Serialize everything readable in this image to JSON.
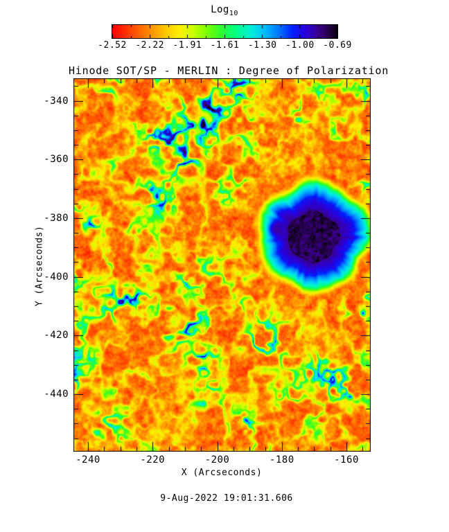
{
  "page": {
    "background": "#ffffff",
    "timestamp": "9-Aug-2022 19:01:31.606"
  },
  "chart_data": {
    "type": "heatmap",
    "title": "Hinode SOT/SP - MERLIN : Degree of Polarization",
    "xlabel": "X (Arcseconds)",
    "ylabel": "Y (Arcseconds)",
    "x_range": [
      -244.5,
      -152.5
    ],
    "y_range": [
      -459.6,
      -332.3
    ],
    "x_ticks": [
      -240,
      -220,
      -200,
      -180,
      -160
    ],
    "y_ticks": [
      -340,
      -360,
      -380,
      -400,
      -420,
      -440
    ],
    "minor_tick_step": 5,
    "grid": false,
    "colorbar": {
      "title": "Log",
      "title_sub": "10",
      "range": [
        -2.52,
        -0.69
      ],
      "tick_labels": [
        "-2.52",
        "-2.22",
        "-1.91",
        "-1.61",
        "-1.30",
        "-1.00",
        "-0.69"
      ],
      "stops": [
        [
          0.0,
          "#ff0000"
        ],
        [
          0.08,
          "#ff4400"
        ],
        [
          0.16,
          "#ff8800"
        ],
        [
          0.24,
          "#ffcc00"
        ],
        [
          0.3,
          "#fdf000"
        ],
        [
          0.36,
          "#c8ff00"
        ],
        [
          0.42,
          "#7dff00"
        ],
        [
          0.48,
          "#2eff2e"
        ],
        [
          0.55,
          "#00ff88"
        ],
        [
          0.62,
          "#00eedd"
        ],
        [
          0.68,
          "#00bbff"
        ],
        [
          0.74,
          "#0077ff"
        ],
        [
          0.8,
          "#0022ff"
        ],
        [
          0.86,
          "#2b00dd"
        ],
        [
          0.92,
          "#3a0088"
        ],
        [
          0.96,
          "#26004d"
        ],
        [
          1.0,
          "#0b0011"
        ]
      ]
    },
    "features": {
      "description": "Log10 degree-of-polarization map: quiet-Sun granular background near -2.4 (red/orange) with yellow speckle, magnetic network lanes at -1.9 to -1.2 (green/cyan/blue), and a sunspot of high polarization (core near -0.75, dark purple/black umbra, blue penumbra with radial filaments, green/yellow outer fringe).",
      "background_log10": -2.35,
      "network_log10": -1.5,
      "sunspot": {
        "x": -170.7,
        "y": -386.4,
        "umbra_radius_arcsec": 8.0,
        "penumbra_radius_arcsec": 15.5,
        "fringe_radius_arcsec": 19.7,
        "core_log10": -0.75
      },
      "pore": {
        "x": -181.5,
        "y": -383.6,
        "radius_arcsec": 2.5,
        "log10": -1.0
      },
      "network_hotspots": [
        {
          "x": 0.441,
          "y": 0.096,
          "r": 0.082,
          "s": 1.0
        },
        {
          "x": 0.557,
          "y": 0.022,
          "r": 0.052,
          "s": 0.8
        },
        {
          "x": 0.615,
          "y": 0.152,
          "r": 0.052,
          "s": 0.75
        },
        {
          "x": 0.364,
          "y": 0.213,
          "r": 0.047,
          "s": 0.7
        },
        {
          "x": 0.312,
          "y": 0.161,
          "r": 0.058,
          "s": 0.65
        },
        {
          "x": 0.289,
          "y": 0.328,
          "r": 0.051,
          "s": 0.6
        },
        {
          "x": 0.044,
          "y": 0.403,
          "r": 0.037,
          "s": 0.9
        },
        {
          "x": 0.138,
          "y": 0.477,
          "r": 0.042,
          "s": 0.5
        },
        {
          "x": 0.184,
          "y": 0.579,
          "r": 0.051,
          "s": 0.9
        },
        {
          "x": 0.347,
          "y": 0.653,
          "r": 0.056,
          "s": 0.9
        },
        {
          "x": 0.441,
          "y": 0.755,
          "r": 0.047,
          "s": 0.8
        },
        {
          "x": 0.452,
          "y": 0.857,
          "r": 0.051,
          "s": 0.85
        },
        {
          "x": 0.569,
          "y": 0.922,
          "r": 0.047,
          "s": 0.7
        },
        {
          "x": 0.965,
          "y": 0.616,
          "r": 0.03,
          "s": 0.9
        },
        {
          "x": 0.814,
          "y": 0.764,
          "r": 0.037,
          "s": 0.45
        },
        {
          "x": 0.977,
          "y": 0.041,
          "r": 0.033,
          "s": 0.6
        },
        {
          "x": 0.825,
          "y": 0.032,
          "r": 0.028,
          "s": 0.5
        },
        {
          "x": 0.231,
          "y": 0.124,
          "r": 0.037,
          "s": 0.5
        },
        {
          "x": 0.126,
          "y": 0.236,
          "r": 0.033,
          "s": 0.4
        },
        {
          "x": 0.079,
          "y": 0.959,
          "r": 0.023,
          "s": 0.4
        },
        {
          "x": 0.732,
          "y": 0.681,
          "r": 0.033,
          "s": 0.4
        }
      ]
    }
  }
}
